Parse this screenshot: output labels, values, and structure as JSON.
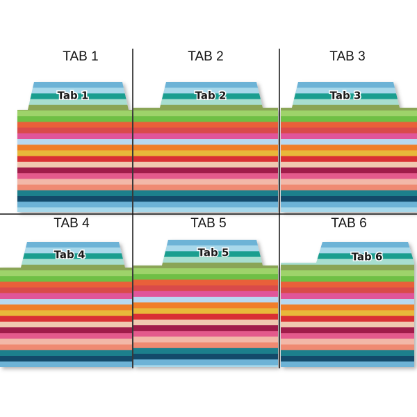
{
  "panels": [
    {
      "heading": "TAB 1",
      "tab": "Tab 1"
    },
    {
      "heading": "TAB 2",
      "tab": "Tab 2"
    },
    {
      "heading": "TAB 3",
      "tab": "Tab 3"
    },
    {
      "heading": "TAB 4",
      "tab": "Tab 4"
    },
    {
      "heading": "TAB 5",
      "tab": "Tab 5"
    },
    {
      "heading": "TAB 6",
      "tab": "Tab 6"
    }
  ]
}
